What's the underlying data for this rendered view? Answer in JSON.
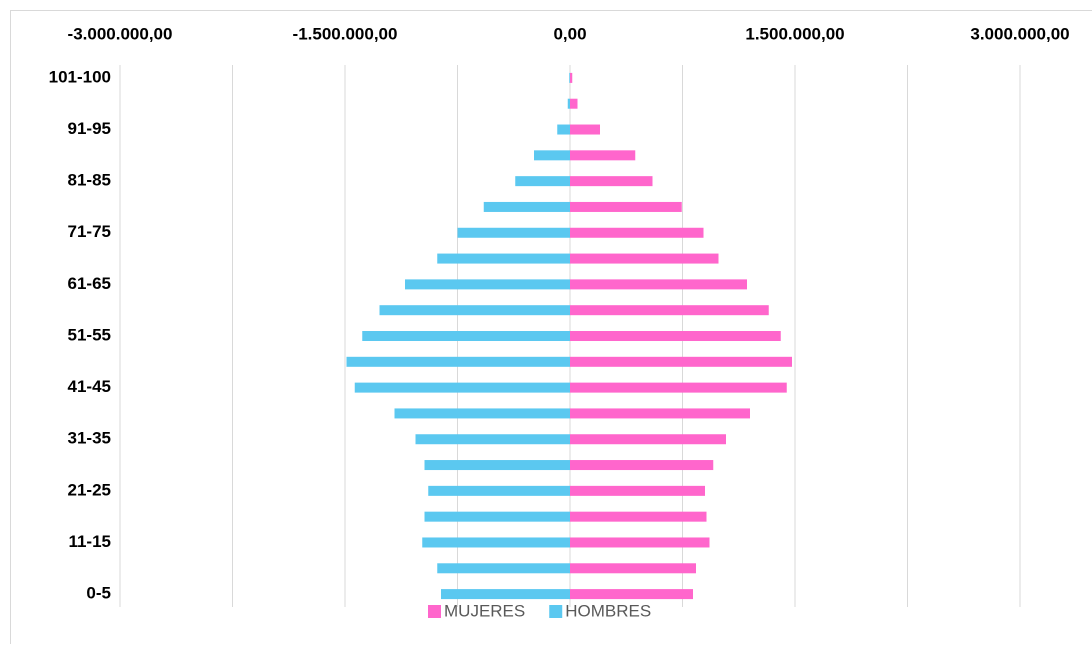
{
  "chart_data": {
    "type": "pyramid",
    "categories": [
      "0-5",
      null,
      "11-15",
      null,
      "21-25",
      null,
      "31-35",
      null,
      "41-45",
      null,
      "51-55",
      null,
      "61-65",
      null,
      "71-75",
      null,
      "81-85",
      null,
      "91-95",
      null,
      "101-100"
    ],
    "series": [
      {
        "name": "MUJERES",
        "color": "#ff66cc",
        "values": [
          820000,
          840000,
          930000,
          910000,
          900000,
          955000,
          1040000,
          1200000,
          1445000,
          1480000,
          1405000,
          1325000,
          1180000,
          990000,
          890000,
          745000,
          550000,
          435000,
          200000,
          50000,
          15000
        ]
      },
      {
        "name": "HOMBRES",
        "color": "#5bc8f0",
        "values": [
          -860000,
          -885000,
          -985000,
          -970000,
          -945000,
          -970000,
          -1030000,
          -1170000,
          -1435000,
          -1490000,
          -1385000,
          -1270000,
          -1100000,
          -885000,
          -750000,
          -575000,
          -365000,
          -240000,
          -85000,
          -15000,
          -5000
        ]
      }
    ],
    "xlim": [
      -3000000,
      3000000
    ],
    "xticks": [
      {
        "value": -3000000,
        "label": "-3.000.000,00"
      },
      {
        "value": -1500000,
        "label": "-1.500.000,00"
      },
      {
        "value": 0,
        "label": "0,00"
      },
      {
        "value": 1500000,
        "label": "1.500.000,00"
      },
      {
        "value": 3000000,
        "label": "3.000.000,00"
      }
    ],
    "minor_xticks": [
      -2250000,
      -750000,
      750000,
      2250000
    ],
    "grid": true,
    "legend": "bottom"
  }
}
